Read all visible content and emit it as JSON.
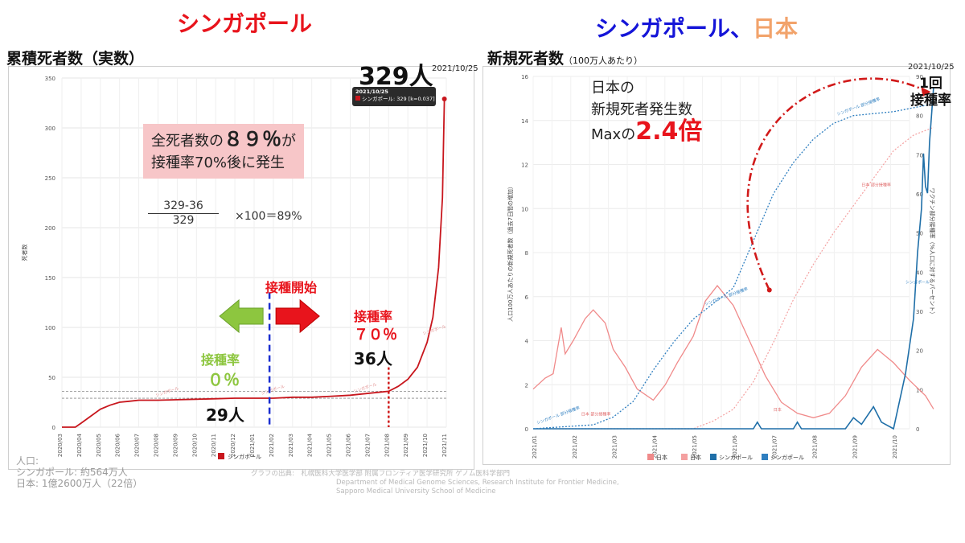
{
  "header": {
    "left_title": "シンガポール",
    "right_title_a": "シンガポール",
    "right_title_sep": "、",
    "right_title_b": "日本",
    "left_sub": "累積死者数（実数）",
    "right_sub": "新規死者数",
    "right_sub_small": "（100万人あたり）"
  },
  "left_annotations": {
    "callout_big": "329人",
    "date": "2021/10/25",
    "tooltip_date": "2021/10/25",
    "tooltip_text": "シンガポール: 329 [k=0.037]",
    "box_line1a": "全死者数の",
    "box_pct": "８９％",
    "box_line1b": "が",
    "box_line2": "接種率70%後に発生",
    "frac_num": "329-36",
    "frac_den": "329",
    "frac_rest": "×100＝89%",
    "start_label": "接種開始",
    "rate_label": "接種率",
    "rate0": "０％",
    "rate70": "７０％",
    "p29": "29人",
    "p36": "36人",
    "line_tag": "シンガポール"
  },
  "right_annotations": {
    "note_l1": "日本の",
    "note_l2": "新規死者発生数",
    "note_l3a": "Maxの",
    "note_l3b": "2.4倍",
    "date": "2021/10/25",
    "vax_l1": "1回",
    "vax_l2": "接種率",
    "ylabel_left": "人口100万人あたりの新規死者数（過去7日間の増加）",
    "ylabel_right": "ワクチン部分接種率（%人口に対するパーセント）",
    "tag_sg": "シンガポール",
    "tag_jp": "日本",
    "tag_sg_vax": "シンガポール 部分接種率",
    "tag_jp_vax": "日本 部分接種率"
  },
  "colors": {
    "sg_red": "#c8161d",
    "jp_pink": "#f08a8a",
    "jp_dotted": "#f4a0a0",
    "sg_blue": "#1f6fa8",
    "sg_vax_blue": "#2f7fc0",
    "arrow_green": "#8dc63f",
    "arrow_red": "#e8141c",
    "title_blue": "#1515d8",
    "title_orange": "#f2a36b",
    "dashed_red": "#d11a1a"
  },
  "chart_data": [
    {
      "type": "line",
      "ylabel": "死者数",
      "ylim": [
        0,
        350
      ],
      "yticks": [
        0,
        50,
        100,
        150,
        200,
        250,
        300,
        350
      ],
      "xticks": [
        "2020/03",
        "2020/04",
        "2020/05",
        "2020/06",
        "2020/07",
        "2020/08",
        "2020/09",
        "2020/10",
        "2020/11",
        "2020/12",
        "2021/01",
        "2021/02",
        "2021/03",
        "2021/04",
        "2021/05",
        "2021/06",
        "2021/07",
        "2021/08",
        "2021/09",
        "2021/10",
        "2021/11"
      ],
      "legend": [
        "シンガポール"
      ],
      "series": [
        {
          "name": "シンガポール",
          "points": [
            [
              0,
              0
            ],
            [
              0.7,
              0
            ],
            [
              1.0,
              4
            ],
            [
              1.5,
              11
            ],
            [
              2.0,
              18
            ],
            [
              2.5,
              22
            ],
            [
              3.0,
              25
            ],
            [
              3.5,
              26
            ],
            [
              4.0,
              27
            ],
            [
              5.0,
              27
            ],
            [
              6.0,
              27.5
            ],
            [
              7.0,
              28
            ],
            [
              8.0,
              28.5
            ],
            [
              9.0,
              29
            ],
            [
              10.0,
              29
            ],
            [
              11.0,
              29
            ],
            [
              12.0,
              30
            ],
            [
              13.0,
              30
            ],
            [
              14.0,
              31
            ],
            [
              15.0,
              32
            ],
            [
              16.0,
              34
            ],
            [
              17.0,
              36
            ],
            [
              17.5,
              41
            ],
            [
              18.0,
              48
            ],
            [
              18.5,
              60
            ],
            [
              19.0,
              85
            ],
            [
              19.3,
              110
            ],
            [
              19.6,
              160
            ],
            [
              19.8,
              230
            ],
            [
              19.9,
              329
            ]
          ]
        }
      ],
      "reference_lines": [
        29,
        36
      ]
    },
    {
      "type": "line",
      "ylabel": "人口100万人あたりの新規死者数（過去7日間の増加）",
      "ylabel_right": "ワクチン部分接種率（%人口に対するパーセント）",
      "ylim": [
        0,
        16
      ],
      "yticks": [
        0,
        2,
        4,
        6,
        8,
        10,
        12,
        14,
        16
      ],
      "ylim_right": [
        0,
        90
      ],
      "yticks_right": [
        0,
        10,
        20,
        30,
        40,
        50,
        60,
        70,
        80,
        90
      ],
      "xticks": [
        "2021/01",
        "2021/02",
        "2021/03",
        "2021/04",
        "2021/05",
        "2021/06",
        "2021/07",
        "2021/08",
        "2021/09",
        "2021/10"
      ],
      "legend": [
        "日本",
        "日本",
        "シンガポール",
        "シンガポール"
      ],
      "series": [
        {
          "name": "日本",
          "axis": "left",
          "points": [
            [
              0,
              1.8
            ],
            [
              0.3,
              2.3
            ],
            [
              0.5,
              2.5
            ],
            [
              0.7,
              4.6
            ],
            [
              0.8,
              3.4
            ],
            [
              1.0,
              4.0
            ],
            [
              1.3,
              5.0
            ],
            [
              1.5,
              5.4
            ],
            [
              1.8,
              4.8
            ],
            [
              2.0,
              3.6
            ],
            [
              2.3,
              2.8
            ],
            [
              2.6,
              1.8
            ],
            [
              3.0,
              1.3
            ],
            [
              3.3,
              2.0
            ],
            [
              3.6,
              3.0
            ],
            [
              4.0,
              4.2
            ],
            [
              4.3,
              5.8
            ],
            [
              4.6,
              6.5
            ],
            [
              5.0,
              5.6
            ],
            [
              5.4,
              4.0
            ],
            [
              5.8,
              2.4
            ],
            [
              6.2,
              1.2
            ],
            [
              6.6,
              0.7
            ],
            [
              7.0,
              0.5
            ],
            [
              7.4,
              0.7
            ],
            [
              7.8,
              1.5
            ],
            [
              8.2,
              2.8
            ],
            [
              8.6,
              3.6
            ],
            [
              9.0,
              3.0
            ],
            [
              9.4,
              2.2
            ],
            [
              9.8,
              1.5
            ],
            [
              10.0,
              0.9
            ]
          ]
        },
        {
          "name": "日本",
          "axis": "right",
          "points": [
            [
              0,
              0
            ],
            [
              4,
              0
            ],
            [
              4.5,
              2
            ],
            [
              5.0,
              5
            ],
            [
              5.5,
              12
            ],
            [
              6.0,
              22
            ],
            [
              6.5,
              33
            ],
            [
              7.0,
              42
            ],
            [
              7.5,
              50
            ],
            [
              8.0,
              57
            ],
            [
              8.5,
              64
            ],
            [
              9.0,
              71
            ],
            [
              9.5,
              75
            ],
            [
              10.0,
              77
            ]
          ]
        },
        {
          "name": "シンガポール",
          "axis": "left",
          "points": [
            [
              0,
              0
            ],
            [
              5.5,
              0
            ],
            [
              5.6,
              0.3
            ],
            [
              5.7,
              0
            ],
            [
              6.5,
              0
            ],
            [
              6.6,
              0.3
            ],
            [
              6.7,
              0
            ],
            [
              7.8,
              0
            ],
            [
              8.0,
              0.5
            ],
            [
              8.2,
              0.2
            ],
            [
              8.5,
              1.0
            ],
            [
              8.7,
              0.3
            ],
            [
              9.0,
              0
            ],
            [
              9.3,
              2.5
            ],
            [
              9.5,
              5.0
            ],
            [
              9.6,
              8.0
            ],
            [
              9.7,
              10.0
            ],
            [
              9.75,
              12.5
            ],
            [
              9.8,
              11.0
            ],
            [
              9.85,
              10.7
            ],
            [
              9.9,
              13.0
            ],
            [
              10.0,
              15.5
            ]
          ]
        },
        {
          "name": "シンガポール",
          "axis": "right",
          "points": [
            [
              0,
              0
            ],
            [
              1.5,
              1
            ],
            [
              2.0,
              3
            ],
            [
              2.5,
              7
            ],
            [
              3.0,
              15
            ],
            [
              3.5,
              22
            ],
            [
              4.0,
              28
            ],
            [
              4.5,
              32
            ],
            [
              5.0,
              36
            ],
            [
              5.5,
              48
            ],
            [
              6.0,
              60
            ],
            [
              6.5,
              68
            ],
            [
              7.0,
              74
            ],
            [
              7.5,
              78
            ],
            [
              8.0,
              80
            ],
            [
              9.0,
              81
            ],
            [
              10.0,
              83
            ]
          ]
        }
      ]
    }
  ],
  "footer": {
    "pop_label": "人口:",
    "pop_sg": "シンガポール: 約564万人",
    "pop_jp": "日本: 1億2600万人（22倍）",
    "source_l1": "グラフの出典:　札幌医科大学医学部 附属フロンティア医学研究所 ゲノム医科学部門",
    "source_l2": "Department of Medical Genome Sciences, Research Institute for Frontier Medicine,",
    "source_l3": "Sapporo Medical University School of Medicine"
  }
}
